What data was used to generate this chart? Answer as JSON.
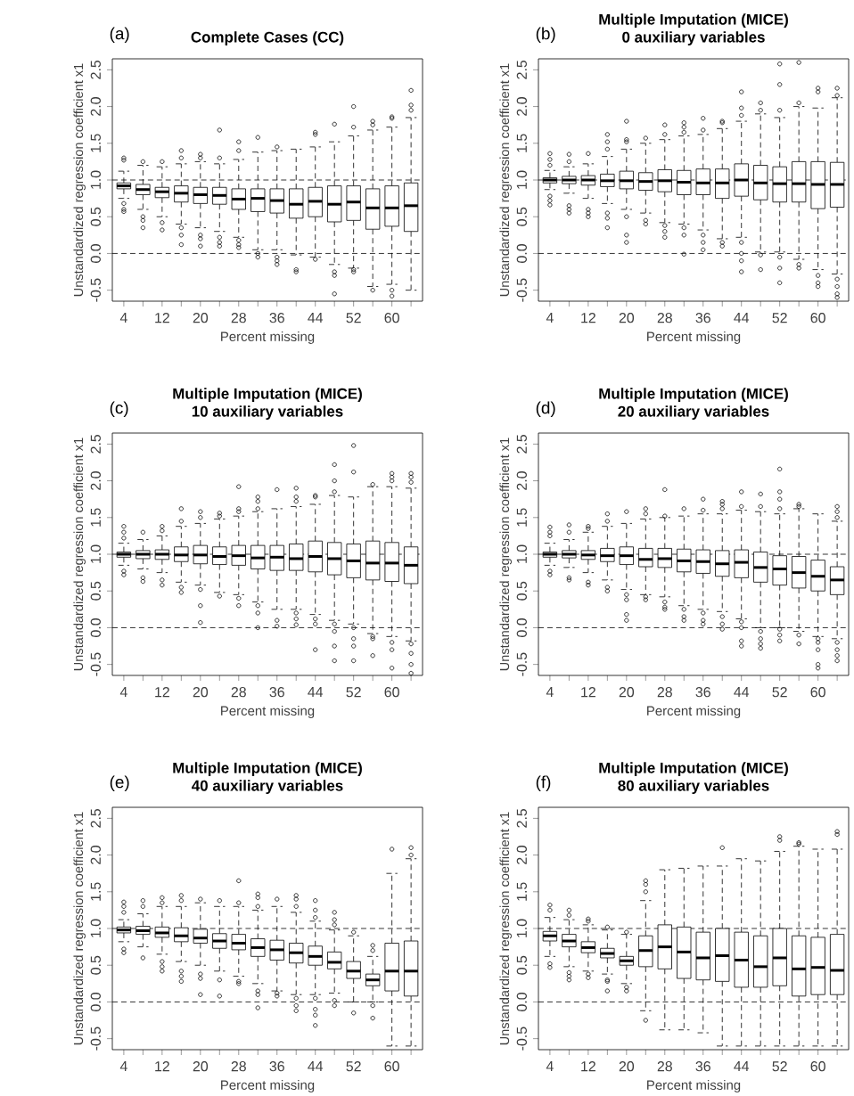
{
  "chart_data": [
    {
      "type": "box",
      "title": "Complete Cases (CC)",
      "annotations": [
        "(a)"
      ],
      "xlabel": "Percent missing",
      "ylabel": "Unstandardized regression coefficient x1",
      "categories": [
        "4",
        null,
        "12",
        null,
        "20",
        null,
        "28",
        null,
        "36",
        null,
        "44",
        null,
        "52",
        null,
        "60",
        null
      ],
      "ylim": [
        -0.65,
        2.65
      ],
      "yticks": [
        {
          "value": -0.5,
          "label": "-0.5"
        },
        {
          "value": 0,
          "label": "0.0"
        },
        {
          "value": 0.5,
          "label": "0.5"
        },
        {
          "value": 1,
          "label": "1.0"
        },
        {
          "value": 1.5,
          "label": "1.5"
        },
        {
          "value": 2,
          "label": "2.0"
        },
        {
          "value": 2.5,
          "label": "2.5"
        }
      ],
      "ref_lines": [
        {
          "axis": "y",
          "value": 0,
          "line_style": "dashed"
        },
        {
          "axis": "y",
          "value": 1,
          "line_style": "dashed"
        }
      ],
      "boxes": [
        {
          "low": 0.75,
          "q1": 0.88,
          "median": 0.92,
          "q3": 0.96,
          "high": 1.12,
          "outliers": [
            1.27,
            1.3,
            0.68,
            0.6,
            0.57
          ]
        },
        {
          "low": 0.6,
          "q1": 0.8,
          "median": 0.87,
          "q3": 0.94,
          "high": 1.2,
          "outliers": [
            1.25,
            0.5,
            0.45,
            0.35
          ]
        },
        {
          "low": 0.5,
          "q1": 0.76,
          "median": 0.84,
          "q3": 0.9,
          "high": 1.18,
          "outliers": [
            1.25,
            0.42,
            0.32
          ]
        },
        {
          "low": 0.4,
          "q1": 0.7,
          "median": 0.82,
          "q3": 0.92,
          "high": 1.22,
          "outliers": [
            1.3,
            1.4,
            0.35,
            0.25,
            0.12
          ]
        },
        {
          "low": 0.35,
          "q1": 0.68,
          "median": 0.8,
          "q3": 0.9,
          "high": 1.25,
          "outliers": [
            1.3,
            1.35,
            0.25,
            0.2,
            0.1
          ]
        },
        {
          "low": 0.3,
          "q1": 0.67,
          "median": 0.79,
          "q3": 0.9,
          "high": 1.22,
          "outliers": [
            1.3,
            1.68,
            0.22,
            0.15,
            0.1
          ]
        },
        {
          "low": 0.22,
          "q1": 0.6,
          "median": 0.74,
          "q3": 0.88,
          "high": 1.28,
          "outliers": [
            1.4,
            1.52,
            0.18,
            0.12,
            0.08
          ]
        },
        {
          "low": 0.05,
          "q1": 0.57,
          "median": 0.75,
          "q3": 0.88,
          "high": 1.38,
          "outliers": [
            1.58,
            0.0,
            -0.05
          ]
        },
        {
          "low": 0.05,
          "q1": 0.55,
          "median": 0.72,
          "q3": 0.88,
          "high": 1.4,
          "outliers": [
            1.45,
            -0.05,
            -0.1,
            -0.15
          ]
        },
        {
          "low": -0.02,
          "q1": 0.48,
          "median": 0.67,
          "q3": 0.88,
          "high": 1.42,
          "outliers": [
            -0.22,
            -0.25
          ]
        },
        {
          "low": -0.05,
          "q1": 0.5,
          "median": 0.71,
          "q3": 0.9,
          "high": 1.45,
          "outliers": [
            1.62,
            1.65,
            -0.08
          ]
        },
        {
          "low": -0.15,
          "q1": 0.43,
          "median": 0.67,
          "q3": 0.92,
          "high": 1.52,
          "outliers": [
            1.76,
            -0.25,
            -0.3,
            -0.55
          ]
        },
        {
          "low": -0.2,
          "q1": 0.45,
          "median": 0.7,
          "q3": 0.92,
          "high": 1.6,
          "outliers": [
            1.72,
            2.0,
            -0.22,
            -0.25
          ]
        },
        {
          "low": -0.45,
          "q1": 0.33,
          "median": 0.62,
          "q3": 0.88,
          "high": 1.68,
          "outliers": [
            1.75,
            1.8,
            -0.5
          ]
        },
        {
          "low": -0.42,
          "q1": 0.37,
          "median": 0.62,
          "q3": 0.92,
          "high": 1.72,
          "outliers": [
            1.84,
            1.86,
            -0.5,
            -0.58
          ]
        },
        {
          "low": -0.5,
          "q1": 0.3,
          "median": 0.65,
          "q3": 0.96,
          "high": 1.85,
          "outliers": [
            1.95,
            2.02,
            2.22
          ]
        }
      ]
    },
    {
      "type": "box",
      "title": "Multiple Imputation (MICE)",
      "subtitle": "0 auxiliary variables",
      "annotations": [
        "(b)"
      ],
      "xlabel": "Percent missing",
      "ylabel": "Unstandardized regression coefficient x1",
      "categories": [
        "4",
        null,
        "12",
        null,
        "20",
        null,
        "28",
        null,
        "36",
        null,
        "44",
        null,
        "52",
        null,
        "60",
        null
      ],
      "ylim": [
        -0.65,
        2.65
      ],
      "yticks": [
        {
          "value": -0.5,
          "label": "-0.5"
        },
        {
          "value": 0,
          "label": "0.0"
        },
        {
          "value": 0.5,
          "label": "0.5"
        },
        {
          "value": 1,
          "label": "1.0"
        },
        {
          "value": 1.5,
          "label": "1.5"
        },
        {
          "value": 2,
          "label": "2.0"
        },
        {
          "value": 2.5,
          "label": "2.5"
        }
      ],
      "ref_lines": [
        {
          "axis": "y",
          "value": 0,
          "line_style": "dashed"
        },
        {
          "axis": "y",
          "value": 1,
          "line_style": "dashed"
        }
      ],
      "boxes": [
        {
          "low": 0.87,
          "q1": 0.96,
          "median": 1.0,
          "q3": 1.03,
          "high": 1.13,
          "outliers": [
            1.2,
            1.28,
            1.36,
            0.78,
            0.72,
            0.66
          ]
        },
        {
          "low": 0.82,
          "q1": 0.95,
          "median": 1.0,
          "q3": 1.05,
          "high": 1.18,
          "outliers": [
            1.25,
            1.35,
            0.65,
            0.6,
            0.55
          ]
        },
        {
          "low": 0.75,
          "q1": 0.93,
          "median": 1.0,
          "q3": 1.06,
          "high": 1.22,
          "outliers": [
            1.36,
            0.6,
            0.55,
            0.5
          ]
        },
        {
          "low": 0.68,
          "q1": 0.91,
          "median": 0.99,
          "q3": 1.08,
          "high": 1.32,
          "outliers": [
            1.42,
            1.52,
            1.62,
            0.55,
            0.48,
            0.35
          ]
        },
        {
          "low": 0.6,
          "q1": 0.88,
          "median": 0.99,
          "q3": 1.12,
          "high": 1.42,
          "outliers": [
            1.52,
            1.55,
            1.8,
            0.5,
            0.25,
            0.15
          ]
        },
        {
          "low": 0.55,
          "q1": 0.86,
          "median": 0.98,
          "q3": 1.1,
          "high": 1.5,
          "outliers": [
            1.57,
            0.45,
            0.4
          ]
        },
        {
          "low": 0.42,
          "q1": 0.84,
          "median": 0.99,
          "q3": 1.14,
          "high": 1.55,
          "outliers": [
            1.62,
            1.75,
            0.38,
            0.3,
            0.22
          ]
        },
        {
          "low": 0.4,
          "q1": 0.8,
          "median": 0.97,
          "q3": 1.13,
          "high": 1.6,
          "outliers": [
            1.65,
            1.72,
            1.78,
            0.35,
            0.25,
            -0.01
          ]
        },
        {
          "low": 0.32,
          "q1": 0.8,
          "median": 0.96,
          "q3": 1.15,
          "high": 1.62,
          "outliers": [
            1.68,
            1.84,
            0.25,
            0.15,
            0.05
          ]
        },
        {
          "low": 0.2,
          "q1": 0.75,
          "median": 0.96,
          "q3": 1.15,
          "high": 1.7,
          "outliers": [
            1.78,
            1.8,
            0.15,
            0.1
          ]
        },
        {
          "low": 0.22,
          "q1": 0.78,
          "median": 1.0,
          "q3": 1.22,
          "high": 1.8,
          "outliers": [
            1.88,
            1.98,
            2.2,
            0.15,
            0.0,
            -0.1,
            -0.25
          ]
        },
        {
          "low": 0.02,
          "q1": 0.73,
          "median": 0.96,
          "q3": 1.2,
          "high": 1.9,
          "outliers": [
            1.95,
            2.05,
            -0.02,
            -0.22
          ]
        },
        {
          "low": 0.02,
          "q1": 0.7,
          "median": 0.95,
          "q3": 1.18,
          "high": 1.85,
          "outliers": [
            1.95,
            2.3,
            2.58,
            -0.05,
            -0.2,
            -0.4
          ]
        },
        {
          "low": -0.08,
          "q1": 0.7,
          "median": 0.95,
          "q3": 1.25,
          "high": 2.0,
          "outliers": [
            2.05,
            2.6,
            -0.15,
            -0.2
          ]
        },
        {
          "low": -0.22,
          "q1": 0.61,
          "median": 0.94,
          "q3": 1.25,
          "high": 1.98,
          "outliers": [
            2.2,
            2.25,
            -0.3,
            -0.4,
            -0.45
          ]
        },
        {
          "low": -0.28,
          "q1": 0.63,
          "median": 0.94,
          "q3": 1.24,
          "high": 2.12,
          "outliers": [
            2.15,
            2.25,
            -0.35,
            -0.45,
            -0.55,
            -0.6
          ]
        }
      ]
    },
    {
      "type": "box",
      "title": "Multiple Imputation (MICE)",
      "subtitle": "10 auxiliary variables",
      "annotations": [
        "(c)"
      ],
      "xlabel": "Percent missing",
      "ylabel": "Unstandardized regression coefficient x1",
      "categories": [
        "4",
        null,
        "12",
        null,
        "20",
        null,
        "28",
        null,
        "36",
        null,
        "44",
        null,
        "52",
        null,
        "60",
        null
      ],
      "ylim": [
        -0.65,
        2.65
      ],
      "yticks": [
        {
          "value": -0.5,
          "label": "-0.5"
        },
        {
          "value": 0,
          "label": "0.0"
        },
        {
          "value": 0.5,
          "label": "0.5"
        },
        {
          "value": 1,
          "label": "1.0"
        },
        {
          "value": 1.5,
          "label": "1.5"
        },
        {
          "value": 2,
          "label": "2.0"
        },
        {
          "value": 2.5,
          "label": "2.5"
        }
      ],
      "ref_lines": [
        {
          "axis": "y",
          "value": 0,
          "line_style": "dashed"
        },
        {
          "axis": "y",
          "value": 1,
          "line_style": "dashed"
        }
      ],
      "boxes": [
        {
          "low": 0.85,
          "q1": 0.96,
          "median": 1.0,
          "q3": 1.03,
          "high": 1.15,
          "outliers": [
            1.22,
            1.3,
            1.38,
            0.77,
            0.72
          ]
        },
        {
          "low": 0.8,
          "q1": 0.94,
          "median": 1.0,
          "q3": 1.05,
          "high": 1.2,
          "outliers": [
            1.3,
            0.68,
            0.63
          ]
        },
        {
          "low": 0.75,
          "q1": 0.93,
          "median": 1.0,
          "q3": 1.06,
          "high": 1.25,
          "outliers": [
            1.32,
            1.38,
            0.65,
            0.58
          ]
        },
        {
          "low": 0.62,
          "q1": 0.9,
          "median": 0.99,
          "q3": 1.1,
          "high": 1.38,
          "outliers": [
            1.45,
            1.62,
            0.55,
            0.48
          ]
        },
        {
          "low": 0.58,
          "q1": 0.87,
          "median": 0.99,
          "q3": 1.12,
          "high": 1.42,
          "outliers": [
            1.5,
            1.58,
            0.52,
            0.3,
            0.07
          ]
        },
        {
          "low": 0.48,
          "q1": 0.86,
          "median": 0.97,
          "q3": 1.1,
          "high": 1.48,
          "outliers": [
            1.52,
            1.56,
            0.43
          ]
        },
        {
          "low": 0.45,
          "q1": 0.85,
          "median": 0.98,
          "q3": 1.12,
          "high": 1.52,
          "outliers": [
            1.58,
            1.62,
            1.92,
            0.4,
            0.3
          ]
        },
        {
          "low": 0.35,
          "q1": 0.8,
          "median": 0.95,
          "q3": 1.12,
          "high": 1.58,
          "outliers": [
            1.62,
            1.72,
            1.78,
            0.3,
            0.2,
            0.0
          ]
        },
        {
          "low": 0.25,
          "q1": 0.78,
          "median": 0.96,
          "q3": 1.12,
          "high": 1.62,
          "outliers": [
            1.88,
            0.1,
            0.02
          ]
        },
        {
          "low": 0.25,
          "q1": 0.78,
          "median": 0.94,
          "q3": 1.14,
          "high": 1.65,
          "outliers": [
            1.72,
            1.78,
            1.9,
            0.2,
            0.12,
            0.04
          ]
        },
        {
          "low": 0.18,
          "q1": 0.76,
          "median": 0.97,
          "q3": 1.18,
          "high": 1.68,
          "outliers": [
            1.78,
            1.8,
            0.12,
            0.05,
            -0.3
          ]
        },
        {
          "low": 0.1,
          "q1": 0.72,
          "median": 0.94,
          "q3": 1.16,
          "high": 1.8,
          "outliers": [
            1.85,
            2.0,
            2.22,
            0.05,
            -0.05,
            -0.25,
            -0.45
          ]
        },
        {
          "low": 0.05,
          "q1": 0.68,
          "median": 0.91,
          "q3": 1.14,
          "high": 1.78,
          "outliers": [
            2.12,
            2.48,
            0.0,
            -0.15,
            -0.25,
            -0.45
          ]
        },
        {
          "low": -0.08,
          "q1": 0.65,
          "median": 0.88,
          "q3": 1.18,
          "high": 1.92,
          "outliers": [
            1.95,
            -0.12,
            -0.15,
            -0.38
          ]
        },
        {
          "low": -0.12,
          "q1": 0.63,
          "median": 0.88,
          "q3": 1.16,
          "high": 1.92,
          "outliers": [
            2.0,
            2.05,
            2.1,
            -0.2,
            -0.3,
            -0.55
          ]
        },
        {
          "low": -0.18,
          "q1": 0.6,
          "median": 0.85,
          "q3": 1.1,
          "high": 1.9,
          "outliers": [
            1.98,
            2.05,
            2.1,
            -0.22,
            -0.35,
            -0.5,
            -0.62
          ]
        }
      ]
    },
    {
      "type": "box",
      "title": "Multiple Imputation (MICE)",
      "subtitle": "20 auxiliary variables",
      "annotations": [
        "(d)"
      ],
      "xlabel": "Percent missing",
      "ylabel": "Unstandardized regression coefficient x1",
      "categories": [
        "4",
        null,
        "12",
        null,
        "20",
        null,
        "28",
        null,
        "36",
        null,
        "44",
        null,
        "52",
        null,
        "60",
        null
      ],
      "ylim": [
        -0.65,
        2.65
      ],
      "yticks": [
        {
          "value": -0.5,
          "label": "-0.5"
        },
        {
          "value": 0,
          "label": "0.0"
        },
        {
          "value": 0.5,
          "label": "0.5"
        },
        {
          "value": 1,
          "label": "1.0"
        },
        {
          "value": 1.5,
          "label": "1.5"
        },
        {
          "value": 2,
          "label": "2.0"
        },
        {
          "value": 2.5,
          "label": "2.5"
        }
      ],
      "ref_lines": [
        {
          "axis": "y",
          "value": 0,
          "line_style": "dashed"
        },
        {
          "axis": "y",
          "value": 1,
          "line_style": "dashed"
        }
      ],
      "boxes": [
        {
          "low": 0.85,
          "q1": 0.96,
          "median": 1.0,
          "q3": 1.03,
          "high": 1.15,
          "outliers": [
            1.25,
            1.3,
            1.37,
            0.77,
            0.72
          ]
        },
        {
          "low": 0.82,
          "q1": 0.95,
          "median": 1.0,
          "q3": 1.05,
          "high": 1.2,
          "outliers": [
            1.3,
            1.4,
            0.68,
            0.65
          ]
        },
        {
          "low": 0.75,
          "q1": 0.93,
          "median": 0.99,
          "q3": 1.05,
          "high": 1.3,
          "outliers": [
            1.35,
            1.38,
            0.62,
            0.58
          ]
        },
        {
          "low": 0.65,
          "q1": 0.9,
          "median": 0.98,
          "q3": 1.08,
          "high": 1.38,
          "outliers": [
            1.45,
            1.55,
            0.55,
            0.5
          ]
        },
        {
          "low": 0.52,
          "q1": 0.86,
          "median": 0.98,
          "q3": 1.1,
          "high": 1.42,
          "outliers": [
            1.58,
            0.45,
            0.38,
            0.18,
            0.1
          ]
        },
        {
          "low": 0.45,
          "q1": 0.83,
          "median": 0.93,
          "q3": 1.08,
          "high": 1.48,
          "outliers": [
            1.55,
            1.62,
            0.42,
            0.38
          ]
        },
        {
          "low": 0.42,
          "q1": 0.82,
          "median": 0.94,
          "q3": 1.08,
          "high": 1.5,
          "outliers": [
            1.52,
            1.88,
            0.35,
            0.28,
            0.25
          ]
        },
        {
          "low": 0.3,
          "q1": 0.76,
          "median": 0.91,
          "q3": 1.07,
          "high": 1.52,
          "outliers": [
            1.62,
            0.25,
            0.15,
            0.1
          ]
        },
        {
          "low": 0.25,
          "q1": 0.74,
          "median": 0.9,
          "q3": 1.06,
          "high": 1.55,
          "outliers": [
            1.6,
            1.75,
            0.2,
            0.1,
            0.05
          ]
        },
        {
          "low": 0.22,
          "q1": 0.7,
          "median": 0.87,
          "q3": 1.05,
          "high": 1.55,
          "outliers": [
            1.62,
            1.68,
            1.72,
            0.15,
            0.05,
            -0.02
          ]
        },
        {
          "low": 0.12,
          "q1": 0.68,
          "median": 0.89,
          "q3": 1.06,
          "high": 1.6,
          "outliers": [
            1.65,
            1.85,
            0.08,
            0.0,
            -0.18,
            -0.25
          ]
        },
        {
          "low": 0.0,
          "q1": 0.62,
          "median": 0.82,
          "q3": 1.03,
          "high": 1.58,
          "outliers": [
            1.65,
            1.82,
            -0.05,
            -0.15,
            -0.22,
            -0.28
          ]
        },
        {
          "low": 0.0,
          "q1": 0.58,
          "median": 0.8,
          "q3": 0.98,
          "high": 1.55,
          "outliers": [
            1.62,
            1.75,
            1.85,
            2.16,
            -0.02,
            -0.1,
            -0.18
          ]
        },
        {
          "low": -0.05,
          "q1": 0.54,
          "median": 0.75,
          "q3": 0.97,
          "high": 1.62,
          "outliers": [
            1.65,
            1.68,
            -0.1,
            -0.22
          ]
        },
        {
          "low": -0.12,
          "q1": 0.5,
          "median": 0.7,
          "q3": 0.92,
          "high": 1.55,
          "outliers": [
            -0.15,
            -0.2,
            -0.3,
            -0.5,
            -0.55
          ]
        },
        {
          "low": -0.15,
          "q1": 0.45,
          "median": 0.65,
          "q3": 0.83,
          "high": 1.45,
          "outliers": [
            1.5,
            1.58,
            1.65,
            -0.2,
            -0.3,
            -0.38,
            -0.45
          ]
        }
      ]
    },
    {
      "type": "box",
      "title": "Multiple Imputation (MICE)",
      "subtitle": "40 auxiliary variables",
      "annotations": [
        "(e)"
      ],
      "xlabel": "Percent missing",
      "ylabel": "Unstandardized regression coefficient x1",
      "categories": [
        "4",
        null,
        "12",
        null,
        "20",
        null,
        "28",
        null,
        "36",
        null,
        "44",
        null,
        "52",
        null,
        "60",
        null
      ],
      "ylim": [
        -0.65,
        2.65
      ],
      "yticks": [
        {
          "value": -0.5,
          "label": "-0.5"
        },
        {
          "value": 0,
          "label": "0.0"
        },
        {
          "value": 0.5,
          "label": "0.5"
        },
        {
          "value": 1,
          "label": "1.0"
        },
        {
          "value": 1.5,
          "label": "1.5"
        },
        {
          "value": 2,
          "label": "2.0"
        },
        {
          "value": 2.5,
          "label": "2.5"
        }
      ],
      "ref_lines": [
        {
          "axis": "y",
          "value": 0,
          "line_style": "dashed"
        },
        {
          "axis": "y",
          "value": 1,
          "line_style": "dashed"
        }
      ],
      "boxes": [
        {
          "low": 0.82,
          "q1": 0.94,
          "median": 0.98,
          "q3": 1.02,
          "high": 1.12,
          "outliers": [
            1.22,
            1.3,
            1.36,
            0.72,
            0.67
          ]
        },
        {
          "low": 0.75,
          "q1": 0.92,
          "median": 0.97,
          "q3": 1.03,
          "high": 1.2,
          "outliers": [
            1.3,
            1.38,
            0.6
          ]
        },
        {
          "low": 0.65,
          "q1": 0.88,
          "median": 0.94,
          "q3": 1.02,
          "high": 1.3,
          "outliers": [
            1.35,
            1.42,
            0.55,
            0.48,
            0.42
          ]
        },
        {
          "low": 0.55,
          "q1": 0.82,
          "median": 0.9,
          "q3": 1.01,
          "high": 1.3,
          "outliers": [
            1.38,
            1.45,
            0.42,
            0.35,
            0.28
          ]
        },
        {
          "low": 0.5,
          "q1": 0.8,
          "median": 0.87,
          "q3": 0.99,
          "high": 1.35,
          "outliers": [
            1.4,
            0.38,
            0.32,
            0.1
          ]
        },
        {
          "low": 0.42,
          "q1": 0.73,
          "median": 0.83,
          "q3": 0.93,
          "high": 1.3,
          "outliers": [
            1.38,
            0.3,
            0.08
          ]
        },
        {
          "low": 0.35,
          "q1": 0.71,
          "median": 0.8,
          "q3": 0.92,
          "high": 1.3,
          "outliers": [
            1.35,
            1.65,
            0.28,
            0.25
          ]
        },
        {
          "low": 0.25,
          "q1": 0.62,
          "median": 0.74,
          "q3": 0.86,
          "high": 1.25,
          "outliers": [
            1.3,
            1.42,
            1.47,
            0.15,
            0.1,
            -0.08
          ]
        },
        {
          "low": 0.15,
          "q1": 0.57,
          "median": 0.71,
          "q3": 0.84,
          "high": 1.3,
          "outliers": [
            1.4,
            0.12,
            0.08
          ]
        },
        {
          "low": 0.1,
          "q1": 0.53,
          "median": 0.67,
          "q3": 0.8,
          "high": 1.22,
          "outliers": [
            1.3,
            1.4,
            1.45,
            0.05,
            -0.05,
            -0.12
          ]
        },
        {
          "low": 0.1,
          "q1": 0.5,
          "median": 0.62,
          "q3": 0.76,
          "high": 1.1,
          "outliers": [
            1.15,
            1.25,
            1.38,
            0.05,
            -0.1,
            -0.18,
            -0.32
          ]
        },
        {
          "low": 0.12,
          "q1": 0.45,
          "median": 0.54,
          "q3": 0.68,
          "high": 0.98,
          "outliers": [
            1.05,
            1.12,
            1.22,
            0.02,
            -0.05
          ]
        },
        {
          "low": 0.0,
          "q1": 0.32,
          "median": 0.42,
          "q3": 0.55,
          "high": 0.9,
          "outliers": [
            0.95,
            -0.15
          ]
        },
        {
          "low": 0.0,
          "q1": 0.22,
          "median": 0.3,
          "q3": 0.38,
          "high": 0.62,
          "outliers": [
            0.7,
            0.77,
            -0.05,
            -0.22
          ]
        },
        {
          "low": -0.6,
          "q1": 0.15,
          "median": 0.42,
          "q3": 0.8,
          "high": 1.75,
          "outliers": [
            2.08
          ]
        },
        {
          "low": -0.6,
          "q1": 0.08,
          "median": 0.42,
          "q3": 0.83,
          "high": 1.95,
          "outliers": [
            2.0,
            2.1
          ]
        }
      ]
    },
    {
      "type": "box",
      "title": "Multiple Imputation (MICE)",
      "subtitle": "80 auxiliary variables",
      "annotations": [
        "(f)"
      ],
      "xlabel": "Percent missing",
      "ylabel": "Unstandardized regression coefficient x1",
      "categories": [
        "4",
        null,
        "12",
        null,
        "20",
        null,
        "28",
        null,
        "36",
        null,
        "44",
        null,
        "52",
        null,
        "60",
        null
      ],
      "ylim": [
        -0.65,
        2.65
      ],
      "yticks": [
        {
          "value": -0.5,
          "label": "-0.5"
        },
        {
          "value": 0,
          "label": "0.0"
        },
        {
          "value": 0.5,
          "label": "0.5"
        },
        {
          "value": 1,
          "label": "1.0"
        },
        {
          "value": 1.5,
          "label": "1.5"
        },
        {
          "value": 2,
          "label": "2.0"
        },
        {
          "value": 2.5,
          "label": "2.5"
        }
      ],
      "ref_lines": [
        {
          "axis": "y",
          "value": 0,
          "line_style": "dashed"
        },
        {
          "axis": "y",
          "value": 1,
          "line_style": "dashed"
        }
      ],
      "boxes": [
        {
          "low": 0.62,
          "q1": 0.83,
          "median": 0.9,
          "q3": 0.96,
          "high": 1.15,
          "outliers": [
            1.25,
            1.32,
            0.52,
            0.47
          ]
        },
        {
          "low": 0.48,
          "q1": 0.75,
          "median": 0.83,
          "q3": 0.92,
          "high": 1.12,
          "outliers": [
            1.18,
            1.25,
            0.4,
            0.35,
            0.3
          ]
        },
        {
          "low": 0.42,
          "q1": 0.67,
          "median": 0.74,
          "q3": 0.82,
          "high": 1.05,
          "outliers": [
            1.1,
            1.13,
            0.38,
            0.33
          ]
        },
        {
          "low": 0.38,
          "q1": 0.6,
          "median": 0.66,
          "q3": 0.73,
          "high": 0.98,
          "outliers": [
            1.02,
            0.3,
            0.28,
            0.15
          ]
        },
        {
          "low": 0.25,
          "q1": 0.5,
          "median": 0.56,
          "q3": 0.62,
          "high": 0.92,
          "outliers": [
            0.95,
            0.2,
            0.15
          ]
        },
        {
          "low": -0.12,
          "q1": 0.48,
          "median": 0.7,
          "q3": 0.9,
          "high": 1.38,
          "outliers": [
            1.5,
            1.6,
            1.65,
            -0.25
          ]
        },
        {
          "low": -0.38,
          "q1": 0.45,
          "median": 0.75,
          "q3": 1.05,
          "high": 1.8
        },
        {
          "low": -0.38,
          "q1": 0.32,
          "median": 0.68,
          "q3": 1.02,
          "high": 1.82
        },
        {
          "low": -0.42,
          "q1": 0.3,
          "median": 0.6,
          "q3": 0.95,
          "high": 1.85
        },
        {
          "low": -0.6,
          "q1": 0.28,
          "median": 0.63,
          "q3": 1.0,
          "high": 1.85,
          "outliers": [
            2.1
          ]
        },
        {
          "low": -0.6,
          "q1": 0.2,
          "median": 0.57,
          "q3": 0.95,
          "high": 1.95
        },
        {
          "low": -0.6,
          "q1": 0.2,
          "median": 0.48,
          "q3": 0.9,
          "high": 1.92
        },
        {
          "low": -0.6,
          "q1": 0.22,
          "median": 0.6,
          "q3": 1.0,
          "high": 2.05,
          "outliers": [
            2.2,
            2.25
          ]
        },
        {
          "low": -0.6,
          "q1": 0.08,
          "median": 0.45,
          "q3": 0.9,
          "high": 2.12,
          "outliers": [
            2.15,
            2.17
          ]
        },
        {
          "low": -0.6,
          "q1": 0.1,
          "median": 0.47,
          "q3": 0.88,
          "high": 2.08
        },
        {
          "low": -0.6,
          "q1": 0.1,
          "median": 0.43,
          "q3": 0.92,
          "high": 2.08,
          "outliers": [
            2.28,
            2.32
          ]
        }
      ]
    }
  ]
}
